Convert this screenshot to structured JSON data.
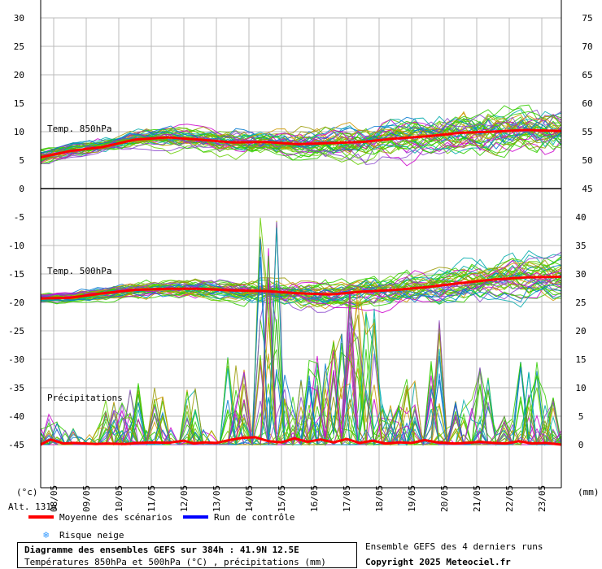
{
  "chart_data": {
    "type": "line",
    "dates": [
      "08/05",
      "09/05",
      "10/05",
      "11/05",
      "12/05",
      "13/05",
      "14/05",
      "15/05",
      "16/05",
      "17/05",
      "18/05",
      "19/05",
      "20/05",
      "21/05",
      "22/05",
      "23/05"
    ],
    "days_span": [
      7.6,
      23.6
    ],
    "unit_left": "(°c)",
    "unit_right": "(mm)",
    "altitude": "Alt. 131m",
    "left_ticks": [
      30,
      25,
      20,
      15,
      10,
      5,
      0,
      -5,
      -10,
      -15,
      -20,
      -25,
      -30,
      -35,
      -40,
      -45
    ],
    "right_ticks_top": [
      75,
      70,
      65,
      60,
      55,
      50,
      45
    ],
    "right_ticks_bottom": [
      40,
      35,
      30,
      25,
      20,
      15,
      10,
      5,
      0
    ],
    "panels": [
      {
        "label": "Temp. 850hPa",
        "ylim": [
          0,
          30
        ],
        "mean": [
          [
            7.6,
            5.5
          ],
          [
            8.5,
            6.6
          ],
          [
            9.5,
            7.3
          ],
          [
            10.5,
            8.6
          ],
          [
            11.5,
            9.0
          ],
          [
            12.5,
            8.6
          ],
          [
            13.5,
            8.1
          ],
          [
            14.5,
            8.2
          ],
          [
            15.5,
            7.8
          ],
          [
            16.5,
            8.0
          ],
          [
            17.5,
            8.2
          ],
          [
            18.5,
            8.8
          ],
          [
            19.5,
            9.2
          ],
          [
            20.5,
            9.8
          ],
          [
            21.5,
            10.0
          ],
          [
            22.5,
            10.3
          ],
          [
            23.6,
            10.1
          ]
        ],
        "spread": [
          [
            7.6,
            1.3
          ],
          [
            9.5,
            1.5
          ],
          [
            11.5,
            1.8
          ],
          [
            13.5,
            2.2
          ],
          [
            15.5,
            2.6
          ],
          [
            17.5,
            3.2
          ],
          [
            19.5,
            3.6
          ],
          [
            21.5,
            4.0
          ],
          [
            23.6,
            4.2
          ]
        ]
      },
      {
        "label": "Temp. 500hPa",
        "ylim": [
          -25,
          -10
        ],
        "mean": [
          [
            7.6,
            -19.3
          ],
          [
            8.5,
            -19.2
          ],
          [
            9.5,
            -18.4
          ],
          [
            10.5,
            -17.8
          ],
          [
            11.5,
            -17.6
          ],
          [
            12.5,
            -17.6
          ],
          [
            13.5,
            -17.9
          ],
          [
            14.5,
            -18.0
          ],
          [
            15.5,
            -18.4
          ],
          [
            16.5,
            -18.6
          ],
          [
            17.5,
            -18.1
          ],
          [
            18.5,
            -17.8
          ],
          [
            19.5,
            -17.3
          ],
          [
            20.5,
            -16.6
          ],
          [
            21.5,
            -16.0
          ],
          [
            22.5,
            -15.6
          ],
          [
            23.6,
            -15.5
          ]
        ],
        "spread": [
          [
            7.6,
            0.8
          ],
          [
            9.5,
            1.2
          ],
          [
            11.5,
            1.6
          ],
          [
            13.5,
            2.0
          ],
          [
            15.5,
            2.4
          ],
          [
            17.5,
            2.8
          ],
          [
            19.5,
            3.2
          ],
          [
            21.5,
            3.6
          ],
          [
            23.6,
            3.8
          ]
        ]
      },
      {
        "label": "Précipitations",
        "ylim": [
          0,
          40
        ],
        "mean": [
          [
            7.6,
            0
          ],
          [
            7.9,
            0.9
          ],
          [
            8.3,
            0.2
          ],
          [
            8.6,
            0.3
          ],
          [
            9.0,
            0.2
          ],
          [
            9.3,
            0.1
          ],
          [
            9.6,
            0.2
          ],
          [
            10.2,
            0.1
          ],
          [
            10.6,
            0.3
          ],
          [
            11.1,
            0.4
          ],
          [
            11.5,
            0.3
          ],
          [
            12.0,
            0.7
          ],
          [
            12.3,
            0.2
          ],
          [
            12.6,
            0.4
          ],
          [
            13.0,
            0.3
          ],
          [
            13.4,
            0.8
          ],
          [
            13.8,
            1.2
          ],
          [
            14.2,
            1.3
          ],
          [
            14.6,
            0.6
          ],
          [
            15.0,
            0.4
          ],
          [
            15.4,
            1.1
          ],
          [
            15.8,
            0.5
          ],
          [
            16.2,
            0.9
          ],
          [
            16.6,
            0.4
          ],
          [
            17.0,
            1.0
          ],
          [
            17.4,
            0.3
          ],
          [
            17.8,
            0.7
          ],
          [
            18.2,
            0.2
          ],
          [
            18.6,
            0.4
          ],
          [
            19.0,
            0.3
          ],
          [
            19.4,
            0.8
          ],
          [
            19.8,
            0.4
          ],
          [
            20.3,
            0.2
          ],
          [
            20.7,
            0.3
          ],
          [
            21.1,
            0.5
          ],
          [
            21.5,
            0.3
          ],
          [
            21.9,
            0.2
          ],
          [
            22.3,
            0.6
          ],
          [
            22.7,
            0.2
          ],
          [
            23.1,
            0.3
          ],
          [
            23.6,
            0.0
          ]
        ],
        "peaks": [
          [
            8.0,
            6
          ],
          [
            9.8,
            8
          ],
          [
            10.4,
            11
          ],
          [
            11.2,
            10
          ],
          [
            12.2,
            10
          ],
          [
            13.6,
            16
          ],
          [
            14.6,
            40
          ],
          [
            15.3,
            14
          ],
          [
            15.9,
            15
          ],
          [
            16.4,
            18
          ],
          [
            16.9,
            20
          ],
          [
            17.3,
            28
          ],
          [
            17.7,
            24
          ],
          [
            18.4,
            7
          ],
          [
            19.0,
            12
          ],
          [
            19.8,
            22
          ],
          [
            20.6,
            8
          ],
          [
            21.2,
            14
          ],
          [
            22.0,
            5
          ],
          [
            22.6,
            15
          ],
          [
            23.3,
            9
          ]
        ]
      }
    ],
    "legend": [
      {
        "label": "Moyenne des scénarios",
        "color": "#ff0000"
      },
      {
        "label": "Run de contrôle",
        "color": "#0000ff"
      },
      {
        "label": "Risque neige",
        "color": "#3399ff"
      }
    ]
  },
  "footer": {
    "title": "Diagramme des ensembles GEFS sur 384h : 41.9N 12.5E",
    "subtitle": "Températures 850hPa et 500hPa (°C) , précipitations (mm)",
    "right_line1": "Ensemble GEFS des 4 derniers runs",
    "right_line2": "Copyright 2025 Meteociel.fr"
  }
}
